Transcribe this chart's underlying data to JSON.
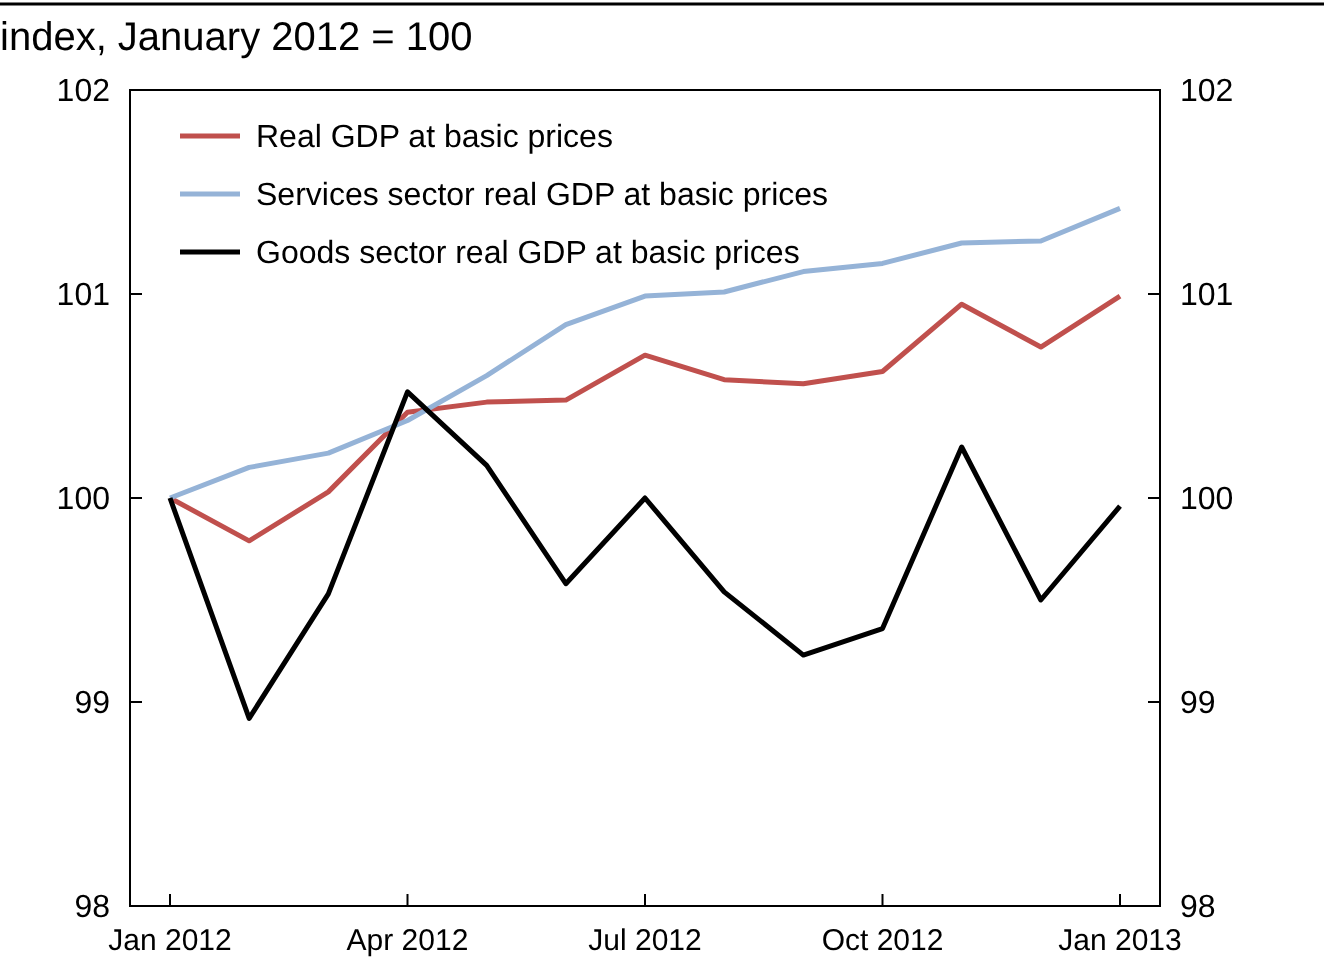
{
  "chart_data": {
    "type": "line",
    "title": "index, January 2012 = 100",
    "categories": [
      "Jan 2012",
      null,
      null,
      "Apr 2012",
      null,
      null,
      "Jul 2012",
      null,
      null,
      "Oct 2012",
      null,
      null,
      "Jan 2013"
    ],
    "series": [
      {
        "name": "Real GDP at basic prices",
        "color": "#c0504d",
        "values": [
          100,
          99.79,
          100.03,
          100.42,
          100.47,
          100.48,
          100.7,
          100.58,
          100.56,
          100.62,
          100.95,
          100.74,
          100.99
        ]
      },
      {
        "name": "Services sector real GDP at basic prices",
        "color": "#95b3d7",
        "values": [
          100,
          100.15,
          100.22,
          100.38,
          100.6,
          100.85,
          100.99,
          101.01,
          101.11,
          101.15,
          101.25,
          101.26,
          101.42
        ]
      },
      {
        "name": "Goods sector real GDP at basic prices",
        "color": "#000000",
        "values": [
          100,
          98.92,
          99.53,
          100.52,
          100.16,
          99.58,
          100,
          99.54,
          99.23,
          99.36,
          100.25,
          99.5,
          99.96
        ]
      }
    ],
    "ylim": [
      98,
      102
    ],
    "yticks": [
      98,
      99,
      100,
      101,
      102
    ],
    "y2lim": [
      98,
      102
    ],
    "y2ticks": [
      98,
      99,
      100,
      101,
      102
    ],
    "grid": false,
    "legend": "top left",
    "marker": "none",
    "line_style": "solid"
  }
}
